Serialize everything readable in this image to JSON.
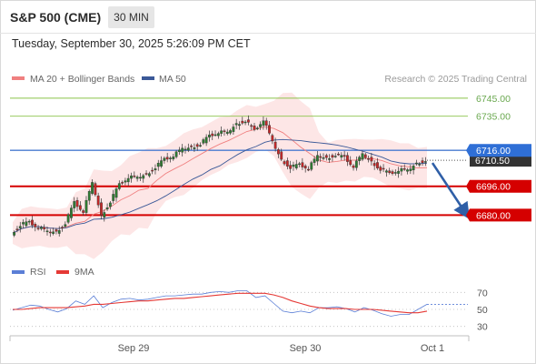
{
  "header": {
    "instrument": "S&P 500 (CME)",
    "interval": "30 MIN",
    "timestamp": "Tuesday, September 30, 2025 5:26:09 PM CET"
  },
  "legend": {
    "ma20": "MA 20 + Bollinger Bands",
    "ma50": "MA 50",
    "credit": "Research © 2025 Trading Central",
    "ma20_color": "#f08080",
    "ma50_color": "#3b5998"
  },
  "indicator_legend": {
    "rsi": "RSI",
    "ma9": "9MA",
    "rsi_color": "#5b7fd6",
    "ma9_color": "#e53935"
  },
  "x_axis": {
    "ticks": [
      "Sep 29",
      "Sep 30",
      "Oct 1"
    ]
  },
  "chart_data": [
    {
      "type": "candlestick",
      "y_range": [
        6664,
        6750
      ],
      "levels": [
        {
          "value": 6745.0,
          "label": "6745.00",
          "kind": "resistance",
          "color": "#8bc34a"
        },
        {
          "value": 6735.0,
          "label": "6735.00",
          "kind": "resistance",
          "color": "#8bc34a"
        },
        {
          "value": 6716.0,
          "label": "6716.00",
          "kind": "pivot",
          "color": "#4a7bd0"
        },
        {
          "value": 6696.0,
          "label": "6696.00",
          "kind": "support",
          "color": "#d50000"
        },
        {
          "value": 6680.0,
          "label": "6680.00",
          "kind": "support",
          "color": "#d50000"
        }
      ],
      "last_price": 6710.5,
      "last_price_label": "6710.50",
      "price_path": [
        6670,
        6675,
        6676,
        6673,
        6670,
        6671,
        6676,
        6687,
        6682,
        6697,
        6680,
        6688,
        6697,
        6701,
        6700,
        6703,
        6707,
        6711,
        6713,
        6716,
        6718,
        6720,
        6724,
        6726,
        6725,
        6731,
        6733,
        6727,
        6733,
        6720,
        6711,
        6707,
        6708,
        6706,
        6712,
        6712,
        6714,
        6712,
        6707,
        6713,
        6710,
        6706,
        6703,
        6705,
        6704,
        6709,
        6711
      ],
      "forecast": {
        "from": 6709,
        "to": 6680,
        "direction": "down"
      }
    },
    {
      "type": "line",
      "title": "RSI",
      "y_ticks": [
        70,
        50,
        30
      ],
      "y_range": [
        20,
        80
      ],
      "series": [
        {
          "name": "RSI",
          "values": [
            49,
            52,
            55,
            54,
            50,
            47,
            51,
            60,
            56,
            66,
            52,
            58,
            62,
            63,
            61,
            62,
            64,
            66,
            66,
            67,
            68,
            68,
            70,
            71,
            70,
            72,
            72,
            64,
            66,
            57,
            48,
            46,
            48,
            46,
            52,
            52,
            53,
            51,
            47,
            52,
            49,
            45,
            42,
            44,
            44,
            50,
            56
          ]
        },
        {
          "name": "9MA",
          "values": [
            50,
            50,
            51,
            52,
            52,
            52,
            52,
            53,
            54,
            56,
            56,
            57,
            58,
            59,
            60,
            60,
            61,
            62,
            63,
            63,
            64,
            65,
            66,
            67,
            68,
            69,
            69,
            69,
            69,
            67,
            64,
            60,
            57,
            54,
            52,
            51,
            51,
            51,
            50,
            50,
            50,
            49,
            48,
            47,
            46,
            46,
            48
          ]
        }
      ]
    }
  ]
}
